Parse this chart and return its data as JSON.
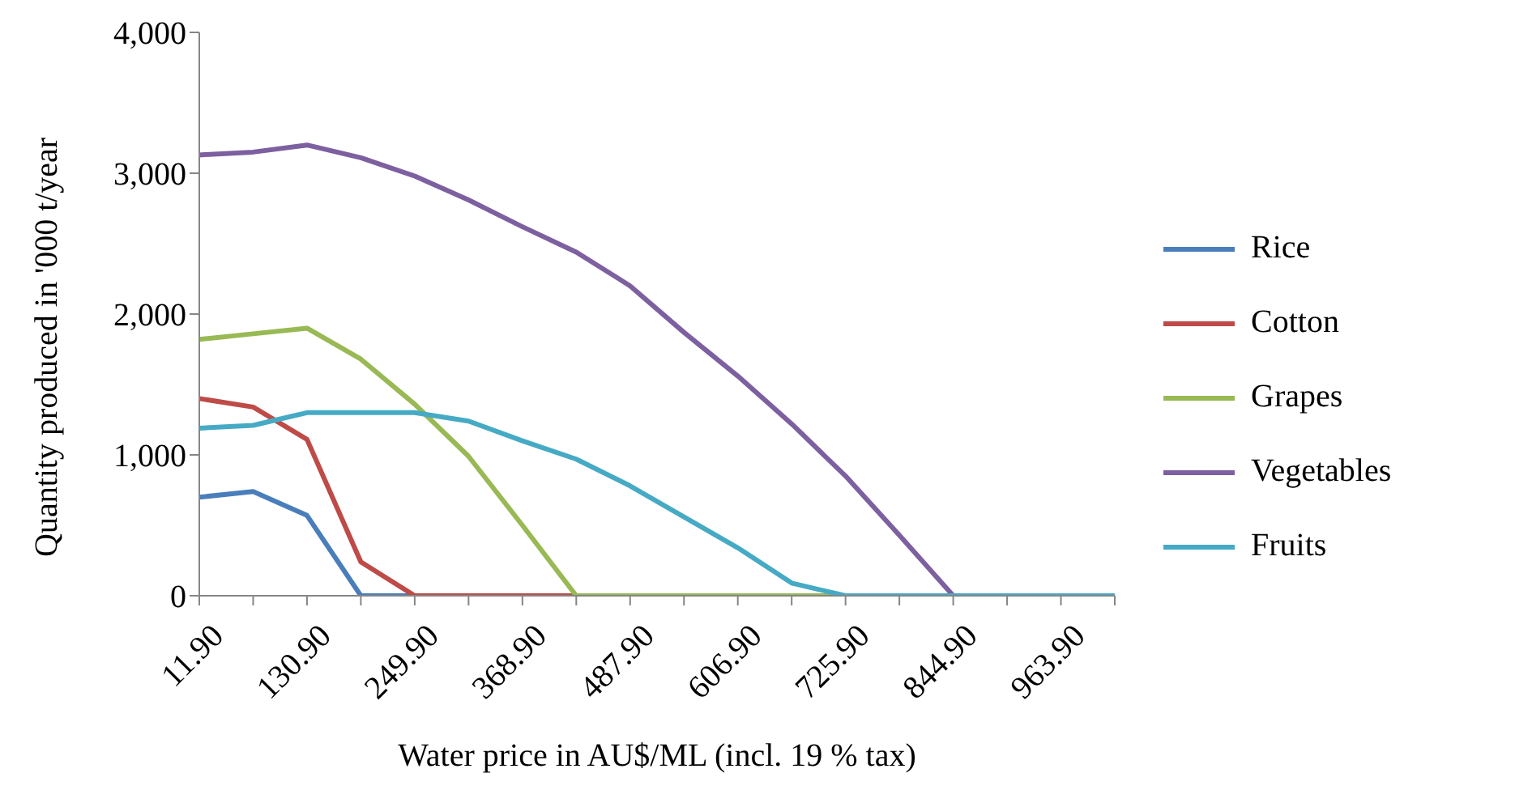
{
  "chart_data": {
    "type": "line",
    "xlabel": "Water price in AU$/ML (incl. 19 % tax)",
    "ylabel": "Quantity produced in '000 t/year",
    "categories": [
      "11.90",
      null,
      "130.90",
      null,
      "249.90",
      null,
      "368.90",
      null,
      "487.90",
      null,
      "606.90",
      null,
      "725.90",
      null,
      "844.90",
      null,
      "963.90",
      null
    ],
    "series": [
      {
        "name": "Rice",
        "color": "#4a7ebb",
        "values": [
          700,
          740,
          570,
          0,
          0,
          null,
          null,
          null,
          null,
          null,
          null,
          null,
          null,
          null,
          null,
          null,
          null,
          null
        ]
      },
      {
        "name": "Cotton",
        "color": "#be4b48",
        "values": [
          1400,
          1340,
          1110,
          240,
          0,
          0,
          0,
          0,
          null,
          null,
          null,
          null,
          null,
          null,
          null,
          null,
          null,
          null
        ]
      },
      {
        "name": "Grapes",
        "color": "#98b954",
        "values": [
          1820,
          1860,
          1900,
          1680,
          1360,
          990,
          500,
          0,
          0,
          0,
          0,
          0,
          0,
          null,
          null,
          null,
          null,
          null
        ]
      },
      {
        "name": "Vegetables",
        "color": "#7d60a0",
        "values": [
          3130,
          3150,
          3200,
          3110,
          2980,
          2810,
          2620,
          2440,
          2200,
          1870,
          1560,
          1220,
          850,
          430,
          0,
          null,
          null,
          null
        ]
      },
      {
        "name": "Fruits",
        "color": "#46aac5",
        "values": [
          1190,
          1210,
          1300,
          1300,
          1300,
          1240,
          1100,
          970,
          780,
          560,
          340,
          90,
          0,
          0,
          0,
          0,
          0,
          0
        ]
      }
    ],
    "ylim": [
      0,
      4000
    ],
    "yticks": [
      0,
      {
        "value": 1000,
        "label": "1,000"
      },
      {
        "value": 2000,
        "label": "2,000"
      },
      {
        "value": 3000,
        "label": "3,000"
      },
      {
        "value": 4000,
        "label": "4,000"
      }
    ],
    "grid": false,
    "legend": "right",
    "marker": "none",
    "line_style": "solid"
  }
}
